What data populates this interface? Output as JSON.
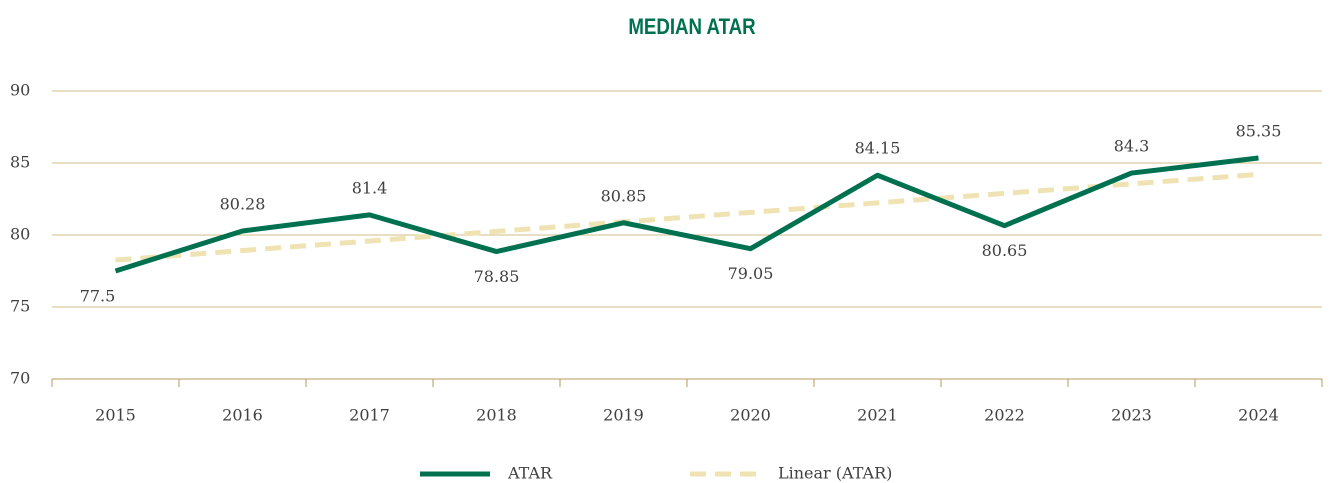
{
  "chart_data": {
    "type": "line",
    "title": "MEDIAN ATAR",
    "categories": [
      "2015",
      "2016",
      "2017",
      "2018",
      "2019",
      "2020",
      "2021",
      "2022",
      "2023",
      "2024"
    ],
    "series": [
      {
        "name": "ATAR",
        "color": "#007150",
        "values": [
          77.5,
          80.28,
          81.4,
          78.85,
          80.85,
          79.05,
          84.15,
          80.65,
          84.3,
          85.35
        ],
        "style": "solid",
        "data_labels": true
      },
      {
        "name": "Linear (ATAR)",
        "color": "#efe3b4",
        "values": [
          78.26,
          78.92,
          79.58,
          80.25,
          80.91,
          81.57,
          82.23,
          82.89,
          83.55,
          84.21
        ],
        "style": "dashed",
        "data_labels": false
      }
    ],
    "ylim": [
      70,
      90
    ],
    "yticks": [
      70,
      75,
      80,
      85,
      90
    ],
    "grid": true,
    "legend": "bottom"
  }
}
